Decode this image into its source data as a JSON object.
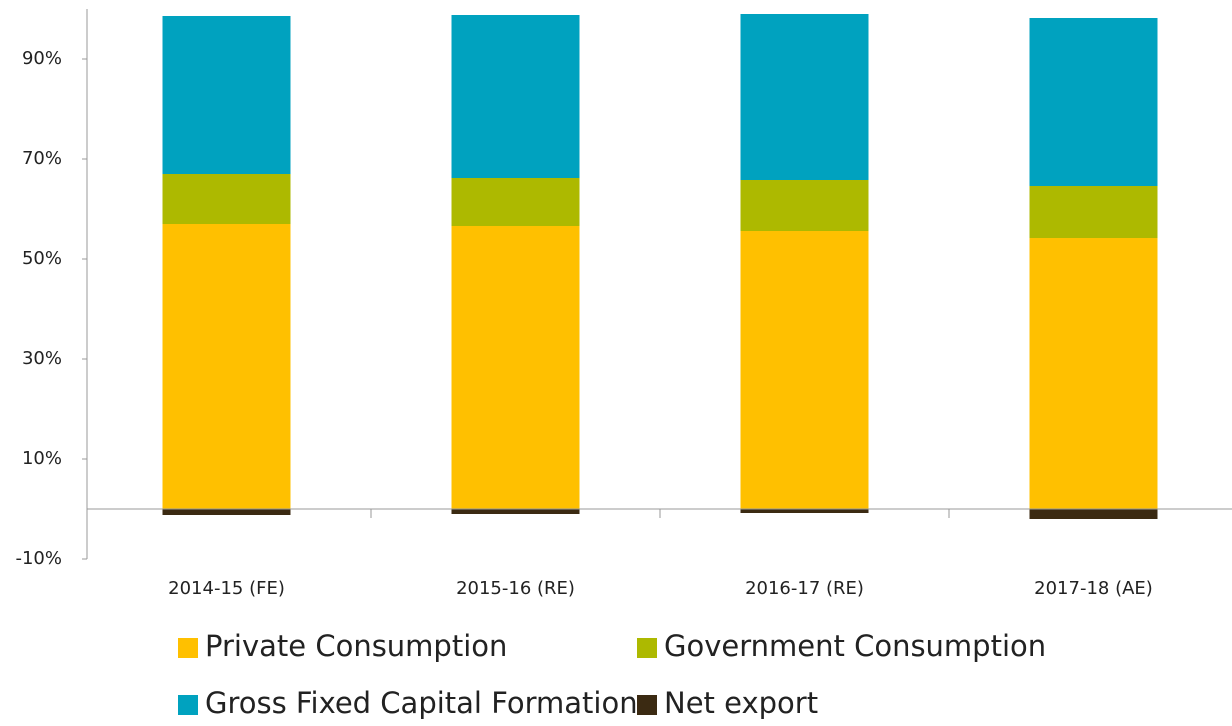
{
  "chart_data": {
    "type": "stacked_bar",
    "categories": [
      "2014-15 (FE)",
      "2015-16 (RE)",
      "2016-17 (RE)",
      "2017-18 (AE)"
    ],
    "series": [
      {
        "name": "Private Consumption",
        "color": "#ffc000",
        "values": [
          57.0,
          56.6,
          55.6,
          54.2
        ]
      },
      {
        "name": "Government Consumption",
        "color": "#adb900",
        "values": [
          10.0,
          9.6,
          10.2,
          10.4
        ]
      },
      {
        "name": "Gross Fixed Capital Formation",
        "color": "#00a2bf",
        "values": [
          31.6,
          32.6,
          33.2,
          33.6
        ]
      },
      {
        "name": "Net export",
        "color": "#3b2a12",
        "values": [
          -1.2,
          -1.0,
          -0.8,
          -2.0
        ]
      }
    ],
    "ylim": [
      -10,
      100
    ],
    "yticks": [
      {
        "value": -10,
        "label": "-10%"
      },
      {
        "value": 10,
        "label": "10%"
      },
      {
        "value": 30,
        "label": "30%"
      },
      {
        "value": 50,
        "label": "50%"
      },
      {
        "value": 70,
        "label": "70%"
      },
      {
        "value": 90,
        "label": "90%"
      }
    ],
    "legend": "bottom"
  }
}
